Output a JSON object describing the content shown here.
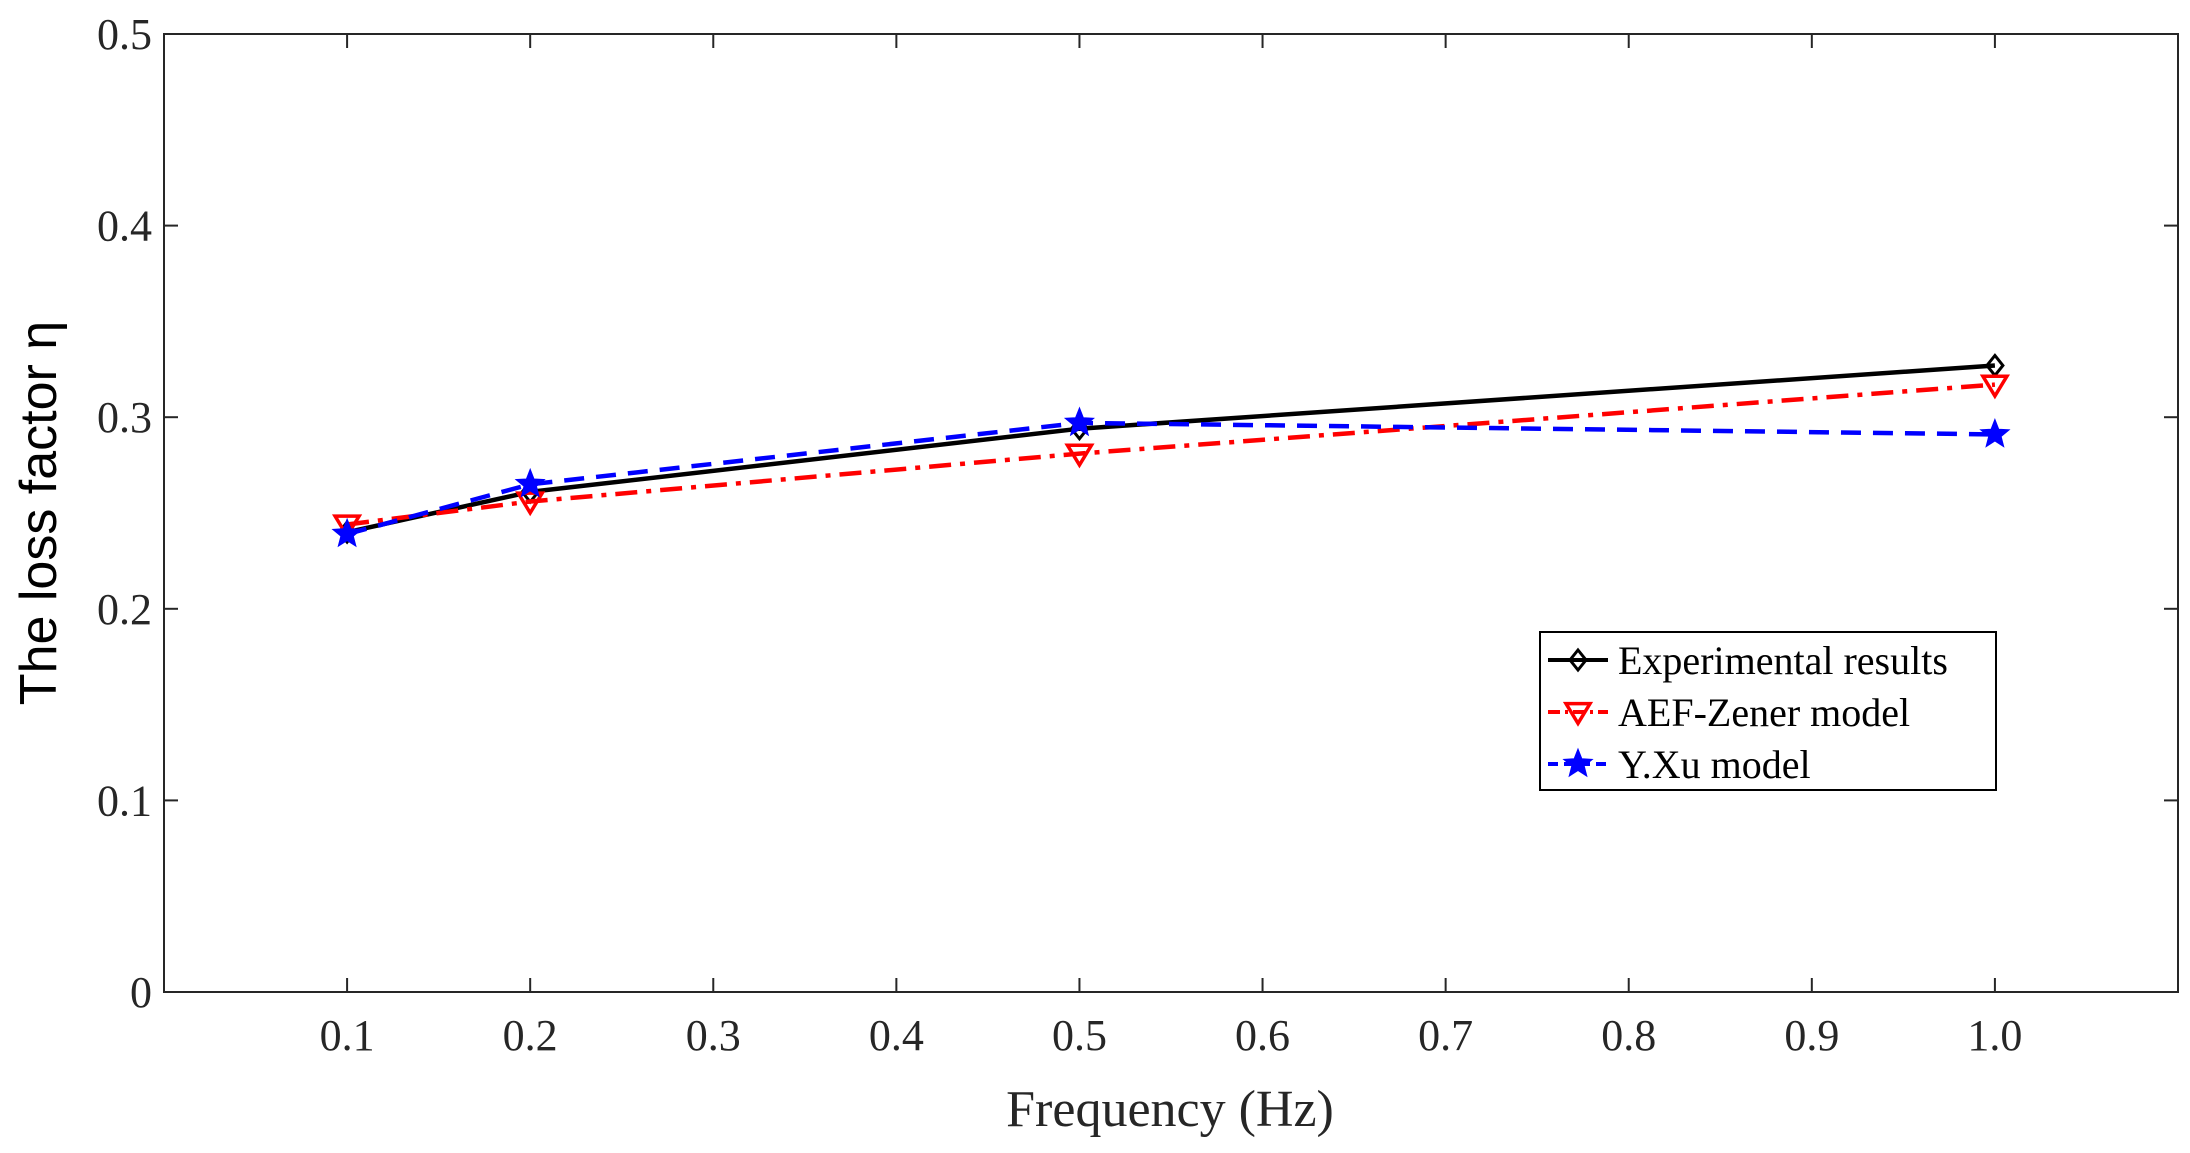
{
  "chart_data": {
    "type": "line",
    "title": "",
    "xlabel": "Frequency (Hz)",
    "ylabel": "The loss factor η",
    "xlim": [
      0,
      1.1
    ],
    "ylim": [
      0,
      0.5
    ],
    "xticks": [
      "0.1",
      "0.2",
      "0.3",
      "0.4",
      "0.5",
      "0.6",
      "0.7",
      "0.8",
      "0.9",
      "1.0"
    ],
    "yticks": [
      "0",
      "0.1",
      "0.2",
      "0.3",
      "0.4",
      "0.5"
    ],
    "grid": false,
    "legend_position": "right",
    "x": [
      0.1,
      0.2,
      0.5,
      1.0
    ],
    "series": [
      {
        "name": "Experimental results",
        "values": [
          0.24,
          0.261,
          0.294,
          0.327
        ],
        "color": "#000000",
        "line_style": "solid",
        "marker": "diamond"
      },
      {
        "name": "AEF-Zener model",
        "values": [
          0.244,
          0.256,
          0.281,
          0.317
        ],
        "color": "#ff0000",
        "line_style": "dash-dot",
        "marker": "triangle-down"
      },
      {
        "name": "Y.Xu model",
        "values": [
          0.239,
          0.265,
          0.297,
          0.291
        ],
        "color": "#0000ff",
        "line_style": "dashed",
        "marker": "star"
      }
    ]
  }
}
